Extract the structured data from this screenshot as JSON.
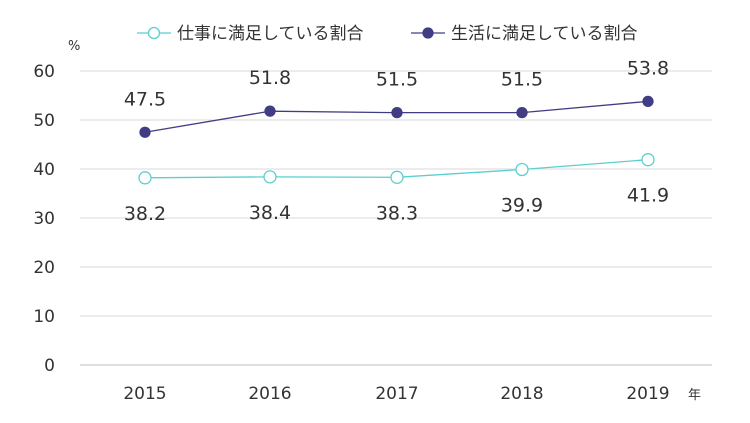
{
  "chart_data": {
    "type": "line",
    "y_unit": "%",
    "x_unit": "年",
    "categories": [
      "2015",
      "2016",
      "2017",
      "2018",
      "2019"
    ],
    "ylim": [
      0,
      60
    ],
    "yticks": [
      0,
      10,
      20,
      30,
      40,
      50,
      60
    ],
    "grid": "horizontal",
    "legend_position": "top",
    "series": [
      {
        "name": "仕事に満足している割合",
        "values": [
          38.2,
          38.4,
          38.3,
          39.9,
          41.9
        ],
        "color": "#5bcfcf",
        "marker": "open-circle",
        "labels": [
          "38.2",
          "38.4",
          "38.3",
          "39.9",
          "41.9"
        ]
      },
      {
        "name": "生活に満足している割合",
        "values": [
          47.5,
          51.8,
          51.5,
          51.5,
          53.8
        ],
        "color": "#403d85",
        "marker": "filled-circle",
        "labels": [
          "47.5",
          "51.8",
          "51.5",
          "51.5",
          "53.8"
        ]
      }
    ]
  }
}
